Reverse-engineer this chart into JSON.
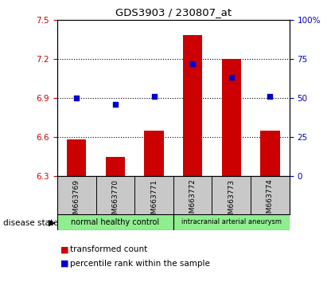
{
  "title": "GDS3903 / 230807_at",
  "samples": [
    "GSM663769",
    "GSM663770",
    "GSM663771",
    "GSM663772",
    "GSM663773",
    "GSM663774"
  ],
  "transformed_counts": [
    6.58,
    6.45,
    6.65,
    7.38,
    7.2,
    6.65
  ],
  "percentile_ranks": [
    50,
    46,
    51,
    72,
    63,
    51
  ],
  "ylim_left": [
    6.3,
    7.5
  ],
  "ylim_right": [
    0,
    100
  ],
  "yticks_left": [
    6.3,
    6.6,
    6.9,
    7.2,
    7.5
  ],
  "yticks_right": [
    0,
    25,
    50,
    75,
    100
  ],
  "ytick_right_labels": [
    "0",
    "25",
    "50",
    "75",
    "100%"
  ],
  "bar_color": "#cc0000",
  "dot_color": "#0000cc",
  "group1_label": "normal healthy control",
  "group2_label": "intracranial arterial aneurysm",
  "group_color": "#90ee90",
  "sample_bg_color": "#c8c8c8",
  "disease_state_label": "disease state",
  "legend_bar_label": "transformed count",
  "legend_dot_label": "percentile rank within the sample"
}
